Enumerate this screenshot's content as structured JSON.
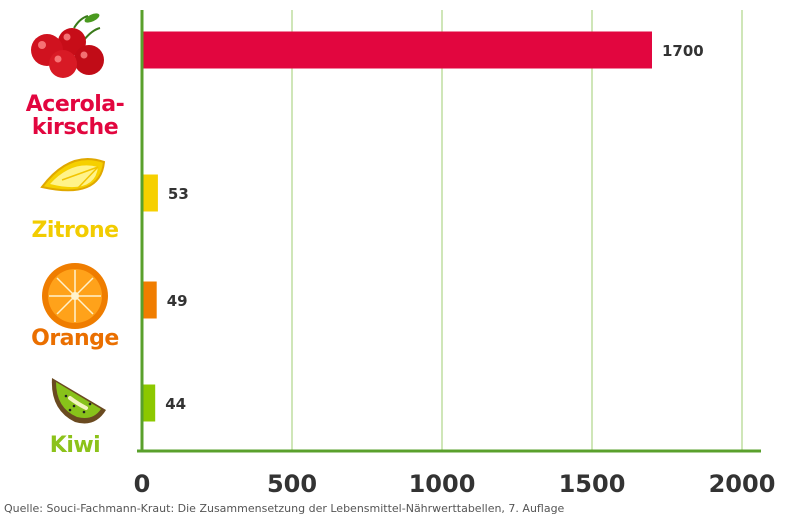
{
  "chart_data": {
    "type": "bar",
    "orientation": "horizontal",
    "categories": [
      "Acerola-kirsche",
      "Zitrone",
      "Orange",
      "Kiwi"
    ],
    "category_lines": [
      [
        "Acerola-",
        "kirsche"
      ],
      [
        "Zitrone"
      ],
      [
        "Orange"
      ],
      [
        "Kiwi"
      ]
    ],
    "values": [
      1700,
      53,
      49,
      44
    ],
    "value_labels": [
      "1700",
      "53",
      "49",
      "44"
    ],
    "bar_colors": [
      "#e2063f",
      "#f6d000",
      "#f07d00",
      "#8cc800"
    ],
    "label_colors": [
      "#e2063f",
      "#f2cc00",
      "#ea6f00",
      "#8cc21a"
    ],
    "xlim": [
      0,
      2000
    ],
    "xticks": [
      0,
      500,
      1000,
      1500,
      2000
    ],
    "xtick_labels": [
      "0",
      "500",
      "1000",
      "1500",
      "2000"
    ],
    "grid": "vertical",
    "axis_color": "#5aa02c",
    "grid_color": "#cfe6b8",
    "icons": [
      "acerola-cherries-icon",
      "lemon-slice-icon",
      "orange-half-icon",
      "kiwi-slice-icon"
    ]
  },
  "source": "Quelle: Souci-Fachmann-Kraut: Die Zusammensetzung der Lebensmittel-Nährwerttabellen, 7. Auflage"
}
